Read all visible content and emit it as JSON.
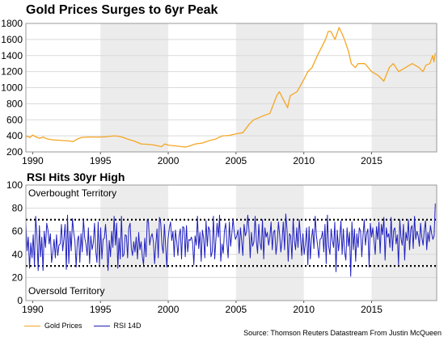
{
  "chart_data": [
    {
      "type": "line",
      "title": "Gold Prices Surges to 6yr Peak",
      "xlim": [
        1989.5,
        2019.8
      ],
      "ylim": [
        200,
        1800
      ],
      "yticks": [
        200,
        400,
        600,
        800,
        1000,
        1200,
        1400,
        1600,
        1800
      ],
      "xticks": [
        1990,
        1995,
        2000,
        2005,
        2010,
        2015
      ],
      "x_tick_labels": [
        "1990",
        "1995",
        "2000",
        "2005",
        "2010",
        "2015"
      ],
      "shaded_periods": [
        [
          1995,
          2000
        ],
        [
          2005,
          2010
        ],
        [
          2015,
          2019.8
        ]
      ],
      "grid": "horizontal",
      "series": [
        {
          "name": "Gold Prices",
          "color": "#F5A623",
          "x": [
            1989.5,
            1989.8,
            1990.0,
            1990.2,
            1990.5,
            1990.8,
            1991.0,
            1991.5,
            1992.0,
            1992.5,
            1993.0,
            1993.3,
            1993.6,
            1994.0,
            1994.5,
            1995.0,
            1995.5,
            1996.0,
            1996.3,
            1996.6,
            1997.0,
            1997.5,
            1998.0,
            1998.5,
            1999.0,
            1999.5,
            1999.75,
            2000.0,
            2000.5,
            2001.0,
            2001.3,
            2001.6,
            2002.0,
            2002.5,
            2003.0,
            2003.5,
            2004.0,
            2004.5,
            2005.0,
            2005.5,
            2006.0,
            2006.3,
            2006.6,
            2007.0,
            2007.5,
            2008.0,
            2008.2,
            2008.5,
            2008.8,
            2009.0,
            2009.5,
            2010.0,
            2010.3,
            2010.6,
            2011.0,
            2011.3,
            2011.6,
            2011.8,
            2012.0,
            2012.3,
            2012.6,
            2012.8,
            2013.0,
            2013.3,
            2013.5,
            2013.8,
            2014.0,
            2014.5,
            2015.0,
            2015.5,
            2015.9,
            2016.3,
            2016.6,
            2017.0,
            2017.5,
            2018.0,
            2018.5,
            2018.8,
            2019.0,
            2019.3,
            2019.5,
            2019.6,
            2019.7
          ],
          "values": [
            400,
            380,
            410,
            390,
            370,
            385,
            365,
            350,
            345,
            340,
            330,
            360,
            380,
            385,
            385,
            385,
            390,
            400,
            395,
            385,
            360,
            335,
            300,
            295,
            285,
            265,
            300,
            285,
            275,
            265,
            260,
            275,
            300,
            310,
            340,
            360,
            400,
            405,
            425,
            440,
            550,
            600,
            620,
            650,
            680,
            900,
            950,
            850,
            750,
            900,
            950,
            1100,
            1200,
            1250,
            1400,
            1500,
            1600,
            1700,
            1700,
            1600,
            1750,
            1680,
            1600,
            1450,
            1300,
            1250,
            1300,
            1300,
            1200,
            1150,
            1080,
            1250,
            1300,
            1200,
            1250,
            1300,
            1250,
            1200,
            1280,
            1300,
            1400,
            1320,
            1430
          ]
        }
      ]
    },
    {
      "type": "line",
      "title": "RSI Hits 30yr High",
      "xlim": [
        1989.5,
        2019.8
      ],
      "ylim": [
        0,
        100
      ],
      "yticks": [
        0,
        20,
        40,
        60,
        80,
        100
      ],
      "xticks": [
        1990,
        1995,
        2000,
        2005,
        2010,
        2015
      ],
      "x_tick_labels": [
        "1990",
        "1995",
        "2000",
        "2005",
        "2010",
        "2015"
      ],
      "shaded_periods": [
        [
          1995,
          2000
        ],
        [
          2005,
          2010
        ],
        [
          2015,
          2019.8
        ]
      ],
      "grid": "horizontal",
      "reference_lines": [
        70,
        30
      ],
      "annotations": [
        "Overbought Territory",
        "Oversold Territory"
      ],
      "series": [
        {
          "name": "RSI 14D",
          "color": "#1F1FBF",
          "x_start": 1989.5,
          "x_end": 2019.7,
          "values": [
            68,
            43,
            55,
            28,
            50,
            37,
            57,
            30,
            73,
            57,
            26,
            65,
            38,
            55,
            26,
            60,
            46,
            67,
            61,
            49,
            58,
            33,
            42,
            53,
            37,
            57,
            39,
            48,
            49,
            66,
            43,
            53,
            66,
            27,
            74,
            32,
            60,
            43,
            71,
            59,
            52,
            29,
            52,
            56,
            33,
            58,
            42,
            71,
            54,
            49,
            39,
            63,
            32,
            56,
            44,
            50,
            67,
            43,
            33,
            68,
            31,
            63,
            36,
            53,
            54,
            66,
            49,
            26,
            52,
            38,
            60,
            46,
            73,
            48,
            67,
            28,
            54,
            36,
            73,
            38,
            40,
            57,
            56,
            37,
            63,
            67,
            45,
            39,
            51,
            42,
            55,
            36,
            59,
            44,
            51,
            38,
            31,
            54,
            38,
            70,
            68,
            48,
            55,
            58,
            51,
            32,
            49,
            62,
            37,
            72,
            67,
            48,
            41,
            66,
            48,
            29,
            53,
            63,
            68,
            52,
            60,
            38,
            61,
            51,
            39,
            56,
            62,
            36,
            64,
            63,
            38,
            65,
            42,
            53,
            52,
            55,
            50,
            31,
            56,
            48,
            73,
            45,
            59,
            34,
            61,
            54,
            37,
            69,
            47,
            64,
            61,
            38,
            42,
            73,
            36,
            53,
            67,
            55,
            74,
            34,
            49,
            41,
            61,
            67,
            50,
            37,
            68,
            47,
            58,
            71,
            59,
            53,
            56,
            61,
            41,
            63,
            52,
            39,
            66,
            56,
            60,
            74,
            61,
            37,
            59,
            47,
            51,
            73,
            52,
            41,
            66,
            50,
            44,
            70,
            36,
            63,
            55,
            59,
            48,
            55,
            68,
            44,
            59,
            61,
            40,
            50,
            68,
            57,
            42,
            52,
            68,
            44,
            75,
            62,
            34,
            58,
            56,
            36,
            71,
            52,
            44,
            63,
            46,
            70,
            55,
            39,
            58,
            40,
            49,
            63,
            31,
            64,
            36,
            54,
            62,
            45,
            73,
            56,
            47,
            37,
            53,
            54,
            60,
            42,
            66,
            32,
            74,
            47,
            40,
            62,
            52,
            46,
            68,
            25,
            61,
            43,
            54,
            69,
            40,
            62,
            42,
            35,
            63,
            47,
            59,
            21,
            68,
            44,
            62,
            34,
            58,
            46,
            63,
            60,
            38,
            56,
            70,
            48,
            58,
            62,
            29,
            67,
            55,
            63,
            52,
            40,
            64,
            53,
            68,
            41,
            66,
            57,
            72,
            35,
            63,
            55,
            58,
            46,
            72,
            43,
            61,
            63,
            49,
            57,
            31,
            70,
            54,
            48,
            66,
            35,
            59,
            52,
            70,
            44,
            62,
            65,
            45,
            73,
            53,
            60,
            56,
            47,
            67,
            55,
            48,
            61,
            69,
            44,
            59,
            51,
            65,
            58,
            53,
            56,
            84
          ]
        }
      ]
    }
  ],
  "legend": {
    "gold_label": "Gold Prices",
    "rsi_label": "RSI 14D",
    "gold_color": "#F5A623",
    "rsi_color": "#1F1FBF"
  },
  "source_text": "Source: Thomson Reuters Datastream From Justin McQueen"
}
